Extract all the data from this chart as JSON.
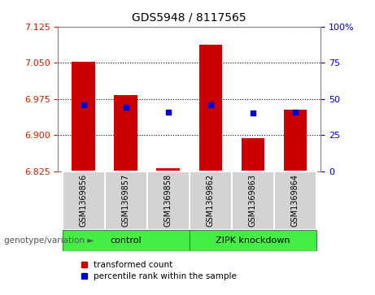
{
  "title": "GDS5948 / 8117565",
  "samples": [
    "GSM1369856",
    "GSM1369857",
    "GSM1369858",
    "GSM1369862",
    "GSM1369863",
    "GSM1369864"
  ],
  "bar_base": 6.825,
  "bar_values": [
    7.052,
    6.982,
    6.831,
    7.088,
    6.893,
    6.953
  ],
  "percentile_values": [
    6.963,
    6.958,
    6.948,
    6.963,
    6.945,
    6.947
  ],
  "ylim_left": [
    6.825,
    7.125
  ],
  "ylim_right": [
    0,
    100
  ],
  "yticks_left": [
    6.825,
    6.9,
    6.975,
    7.05,
    7.125
  ],
  "yticks_right": [
    0,
    25,
    50,
    75,
    100
  ],
  "bar_color": "#CC0000",
  "percentile_color": "#0000CC",
  "bar_width": 0.55,
  "bg_plot": "#ffffff",
  "tick_label_color_left": "#CC2200",
  "tick_label_color_right": "#0000CC",
  "sample_bg_color": "#d3d3d3",
  "group_bg_color": "#44ee44",
  "legend_items": [
    "transformed count",
    "percentile rank within the sample"
  ],
  "legend_colors": [
    "#CC0000",
    "#0000CC"
  ],
  "ctrl_label": "control",
  "zipk_label": "ZIPK knockdown"
}
